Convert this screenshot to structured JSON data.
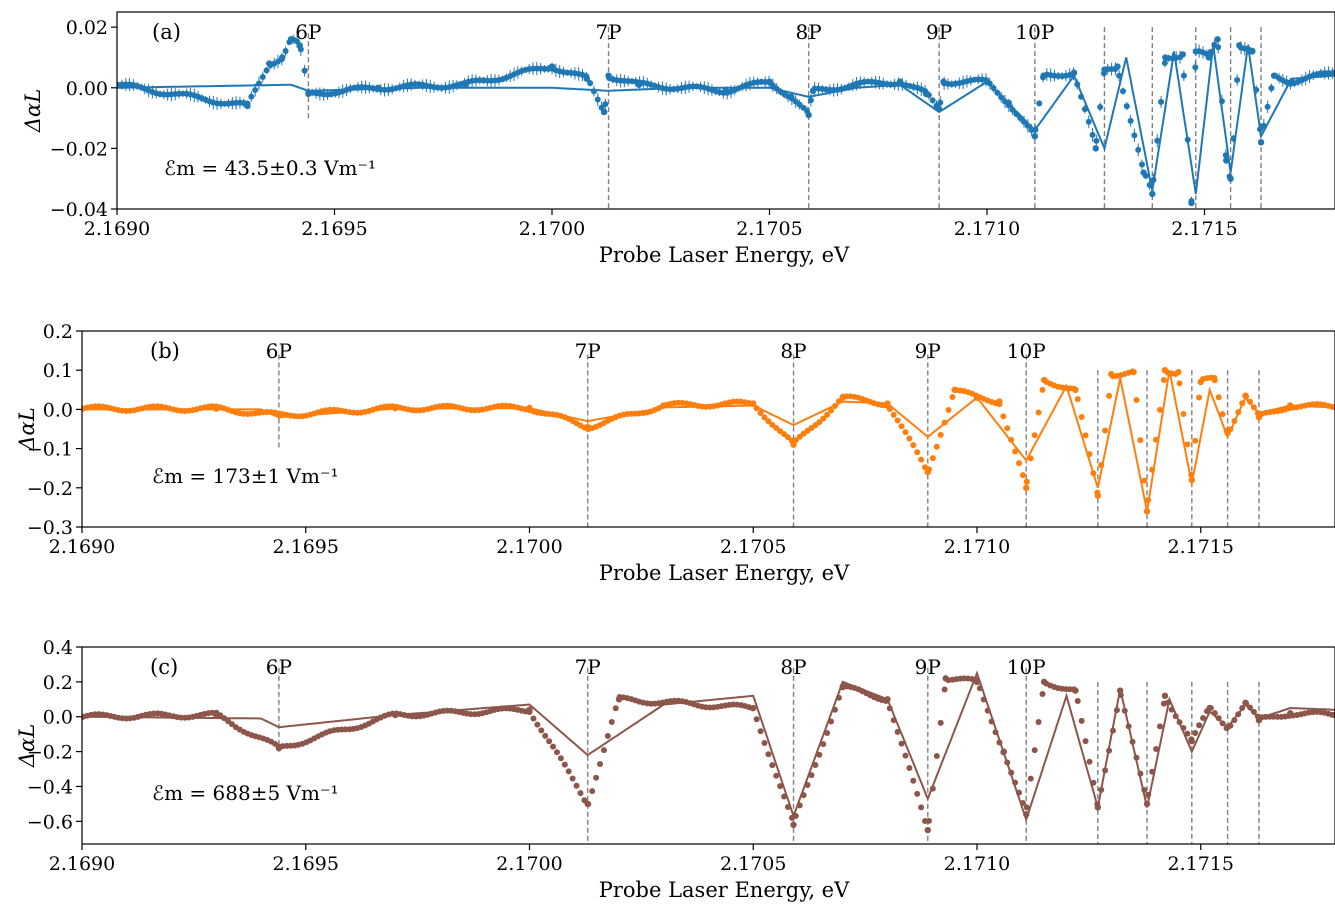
{
  "colors": {
    "panel_a": "#1f77b4",
    "panel_b": "#ff7f0e",
    "panel_c": "#8c564b",
    "guide_lines": "#808080"
  },
  "chart_data": [
    {
      "id": "a",
      "type": "scatter",
      "panel_label": "(a)",
      "xlabel": "Probe Laser Energy, eV",
      "ylabel": "ΔαL",
      "xlim": [
        2.169,
        2.1718
      ],
      "ylim": [
        -0.04,
        0.025
      ],
      "xticks": [
        2.169,
        2.1695,
        2.17,
        2.1705,
        2.171,
        2.1715
      ],
      "xtick_labels": [
        "2.1690",
        "2.1695",
        "2.1700",
        "2.1705",
        "2.1710",
        "2.1715"
      ],
      "yticks": [
        -0.04,
        -0.02,
        0.0,
        0.02
      ],
      "ytick_labels": [
        "−0.04",
        "−0.02",
        "0.00",
        "0.02"
      ],
      "field_label": "ℰm = 43.5±0.3 Vm⁻¹",
      "resonance_labels": [
        "6P",
        "7P",
        "8P",
        "9P",
        "10P"
      ],
      "resonance_energies": [
        2.16944,
        2.17013,
        2.17059,
        2.17089,
        2.17111,
        2.17127,
        2.17138,
        2.17148,
        2.17156,
        2.17163
      ],
      "guide_ranges": [
        [
          -0.01,
          0.018
        ],
        [
          -0.04,
          0.02
        ],
        [
          -0.04,
          0.02
        ],
        [
          -0.04,
          0.02
        ],
        [
          -0.04,
          0.02
        ],
        [
          -0.04,
          0.02
        ],
        [
          -0.04,
          0.02
        ],
        [
          -0.04,
          0.02
        ],
        [
          -0.04,
          0.02
        ],
        [
          -0.04,
          0.02
        ]
      ],
      "legend": "none",
      "series": [
        {
          "kind": "points",
          "style": "error-bars",
          "x": [
            2.169,
            2.1693,
            2.16935,
            2.16938,
            2.1694,
            2.16942,
            2.16944,
            2.1696,
            2.1698,
            2.17,
            2.17008,
            2.17012,
            2.17013,
            2.1702,
            2.1704,
            2.1705,
            2.17055,
            2.17059,
            2.1706,
            2.1707,
            2.1708,
            2.17086,
            2.17089,
            2.1709,
            2.171,
            2.17105,
            2.17111,
            2.17113,
            2.1712,
            2.17125,
            2.17127,
            2.1713,
            2.17136,
            2.17138,
            2.17141,
            2.17145,
            2.17147,
            2.17148,
            2.17151,
            2.17153,
            2.17155,
            2.17156,
            2.17158,
            2.17161,
            2.17163,
            2.17166,
            2.1717,
            2.1718
          ],
          "y": [
            0.001,
            -0.006,
            0.008,
            0.01,
            0.016,
            0.014,
            -0.002,
            0.0,
            0.001,
            0.007,
            0.003,
            -0.008,
            0.004,
            0.001,
            -0.001,
            0.002,
            -0.003,
            -0.009,
            -0.001,
            0.001,
            0.002,
            -0.002,
            -0.007,
            0.002,
            0.002,
            -0.005,
            -0.016,
            0.004,
            0.005,
            -0.02,
            0.006,
            0.007,
            -0.028,
            -0.035,
            0.01,
            0.011,
            -0.038,
            0.012,
            0.01,
            0.016,
            -0.024,
            -0.03,
            0.014,
            0.012,
            -0.018,
            0.004,
            0.002,
            0.005
          ]
        },
        {
          "kind": "line",
          "style": "fit",
          "x": [
            2.169,
            2.1694,
            2.16944,
            2.1697,
            2.17,
            2.17013,
            2.1703,
            2.1705,
            2.17059,
            2.1707,
            2.1708,
            2.17089,
            2.171,
            2.17111,
            2.1712,
            2.17127,
            2.17132,
            2.17138,
            2.17143,
            2.17148,
            2.17152,
            2.17156,
            2.1716,
            2.17163,
            2.1717,
            2.1718
          ],
          "y": [
            0.0,
            0.001,
            -0.001,
            0.0,
            0.0,
            -0.001,
            0.0,
            0.0,
            -0.003,
            0.0,
            0.001,
            -0.008,
            0.002,
            -0.014,
            0.004,
            -0.02,
            0.01,
            -0.034,
            0.012,
            -0.035,
            0.014,
            -0.028,
            0.014,
            -0.016,
            0.003,
            0.004
          ]
        }
      ]
    },
    {
      "id": "b",
      "type": "scatter",
      "panel_label": "(b)",
      "xlabel": "Probe Laser Energy, eV",
      "ylabel": "ΔαL",
      "xlim": [
        2.169,
        2.1718
      ],
      "ylim": [
        -0.3,
        0.2
      ],
      "xticks": [
        2.169,
        2.1695,
        2.17,
        2.1705,
        2.171,
        2.1715
      ],
      "xtick_labels": [
        "2.1690",
        "2.1695",
        "2.1700",
        "2.1705",
        "2.1710",
        "2.1715"
      ],
      "yticks": [
        -0.3,
        -0.2,
        -0.1,
        0.0,
        0.1,
        0.2
      ],
      "ytick_labels": [
        "−0.3",
        "−0.2",
        "−0.1",
        "0.0",
        "0.1",
        "0.2"
      ],
      "field_label": "ℰm = 173±1 Vm⁻¹",
      "resonance_labels": [
        "6P",
        "7P",
        "8P",
        "9P",
        "10P"
      ],
      "resonance_energies": [
        2.16944,
        2.17013,
        2.17059,
        2.17089,
        2.17111,
        2.17127,
        2.17138,
        2.17148,
        2.17156,
        2.17163
      ],
      "guide_ranges": [
        [
          -0.1,
          0.14
        ],
        [
          -0.3,
          0.14
        ],
        [
          -0.3,
          0.14
        ],
        [
          -0.3,
          0.14
        ],
        [
          -0.3,
          0.14
        ],
        [
          -0.3,
          0.1
        ],
        [
          -0.3,
          0.1
        ],
        [
          -0.3,
          0.1
        ],
        [
          -0.3,
          0.1
        ],
        [
          -0.3,
          0.1
        ]
      ],
      "legend": "none",
      "series": [
        {
          "kind": "points",
          "style": "dots",
          "x": [
            2.169,
            2.1693,
            2.16944,
            2.1697,
            2.17,
            2.17013,
            2.1703,
            2.1705,
            2.17059,
            2.1707,
            2.1708,
            2.17089,
            2.17095,
            2.171,
            2.17105,
            2.17111,
            2.17115,
            2.17122,
            2.17127,
            2.1713,
            2.17135,
            2.17138,
            2.17142,
            2.17145,
            2.17148,
            2.1715,
            2.17153,
            2.17156,
            2.1716,
            2.17163,
            2.1717,
            2.1718
          ],
          "y": [
            0.002,
            0.002,
            -0.015,
            0.003,
            0.004,
            -0.045,
            0.01,
            0.015,
            -0.09,
            0.03,
            0.015,
            -0.16,
            0.05,
            0.03,
            0.02,
            -0.2,
            0.075,
            0.05,
            -0.22,
            0.09,
            0.095,
            -0.26,
            0.1,
            0.095,
            -0.18,
            0.07,
            0.08,
            -0.06,
            0.035,
            -0.02,
            0.01,
            0.006
          ]
        },
        {
          "kind": "line",
          "style": "fit",
          "x": [
            2.169,
            2.1694,
            2.16944,
            2.1697,
            2.17,
            2.17013,
            2.1703,
            2.1705,
            2.17059,
            2.1707,
            2.1708,
            2.17089,
            2.171,
            2.17111,
            2.1712,
            2.17127,
            2.17132,
            2.17138,
            2.17143,
            2.17148,
            2.17152,
            2.17156,
            2.1716,
            2.17163,
            2.1717,
            2.1718
          ],
          "y": [
            0.0,
            0.0,
            -0.02,
            0.002,
            0.003,
            -0.03,
            0.005,
            0.01,
            -0.04,
            0.02,
            0.015,
            -0.07,
            0.03,
            -0.13,
            0.06,
            -0.2,
            0.08,
            -0.26,
            0.1,
            -0.19,
            0.05,
            -0.07,
            0.03,
            -0.01,
            0.01,
            0.005
          ]
        }
      ]
    },
    {
      "id": "c",
      "type": "scatter",
      "panel_label": "(c)",
      "xlabel": "Probe Laser Energy, eV",
      "ylabel": "ΔαL",
      "xlim": [
        2.169,
        2.1718
      ],
      "ylim": [
        -0.73,
        0.4
      ],
      "xticks": [
        2.169,
        2.1695,
        2.17,
        2.1705,
        2.171,
        2.1715
      ],
      "xtick_labels": [
        "2.1690",
        "2.1695",
        "2.1700",
        "2.1705",
        "2.1710",
        "2.1715"
      ],
      "yticks": [
        -0.6,
        -0.4,
        -0.2,
        0.0,
        0.2,
        0.4
      ],
      "ytick_labels": [
        "−0.6",
        "−0.4",
        "−0.2",
        "0.0",
        "0.2",
        "0.4"
      ],
      "field_label": "ℰm = 688±5 Vm⁻¹",
      "resonance_labels": [
        "6P",
        "7P",
        "8P",
        "9P",
        "10P"
      ],
      "resonance_energies": [
        2.16944,
        2.17013,
        2.17059,
        2.17089,
        2.17111,
        2.17127,
        2.17138,
        2.17148,
        2.17156,
        2.17163
      ],
      "guide_ranges": [
        [
          -0.2,
          0.28
        ],
        [
          -0.73,
          0.28
        ],
        [
          -0.73,
          0.28
        ],
        [
          -0.73,
          0.28
        ],
        [
          -0.73,
          0.28
        ],
        [
          -0.73,
          0.2
        ],
        [
          -0.73,
          0.2
        ],
        [
          -0.73,
          0.2
        ],
        [
          -0.73,
          0.2
        ],
        [
          -0.73,
          0.2
        ]
      ],
      "legend": "none",
      "series": [
        {
          "kind": "points",
          "style": "dots",
          "x": [
            2.169,
            2.1693,
            2.16944,
            2.1697,
            2.17,
            2.17013,
            2.1702,
            2.1705,
            2.17059,
            2.1707,
            2.1708,
            2.17089,
            2.17093,
            2.171,
            2.17106,
            2.17111,
            2.17115,
            2.17122,
            2.17127,
            2.17132,
            2.17138,
            2.17142,
            2.17148,
            2.17152,
            2.17156,
            2.1716,
            2.17163,
            2.1717,
            2.1718
          ],
          "y": [
            0.0,
            0.01,
            -0.18,
            0.01,
            0.04,
            -0.5,
            0.1,
            0.05,
            -0.62,
            0.17,
            0.1,
            -0.65,
            0.22,
            0.2,
            -0.2,
            -0.56,
            0.2,
            0.15,
            -0.52,
            0.15,
            -0.5,
            0.12,
            -0.14,
            0.05,
            -0.06,
            0.08,
            -0.02,
            0.02,
            0.01
          ]
        },
        {
          "kind": "line",
          "style": "fit",
          "x": [
            2.169,
            2.1694,
            2.16944,
            2.1697,
            2.17,
            2.17013,
            2.1703,
            2.1705,
            2.17059,
            2.1707,
            2.1708,
            2.17089,
            2.171,
            2.17111,
            2.1712,
            2.17127,
            2.17132,
            2.17138,
            2.17143,
            2.17148,
            2.17152,
            2.17156,
            2.1716,
            2.17163,
            2.1717,
            2.1718
          ],
          "y": [
            0.0,
            -0.01,
            -0.06,
            0.01,
            0.07,
            -0.22,
            0.07,
            0.12,
            -0.57,
            0.2,
            0.1,
            -0.47,
            0.25,
            -0.59,
            0.12,
            -0.52,
            0.16,
            -0.52,
            0.1,
            -0.2,
            0.03,
            -0.06,
            0.07,
            -0.01,
            0.05,
            0.04
          ]
        }
      ]
    }
  ]
}
